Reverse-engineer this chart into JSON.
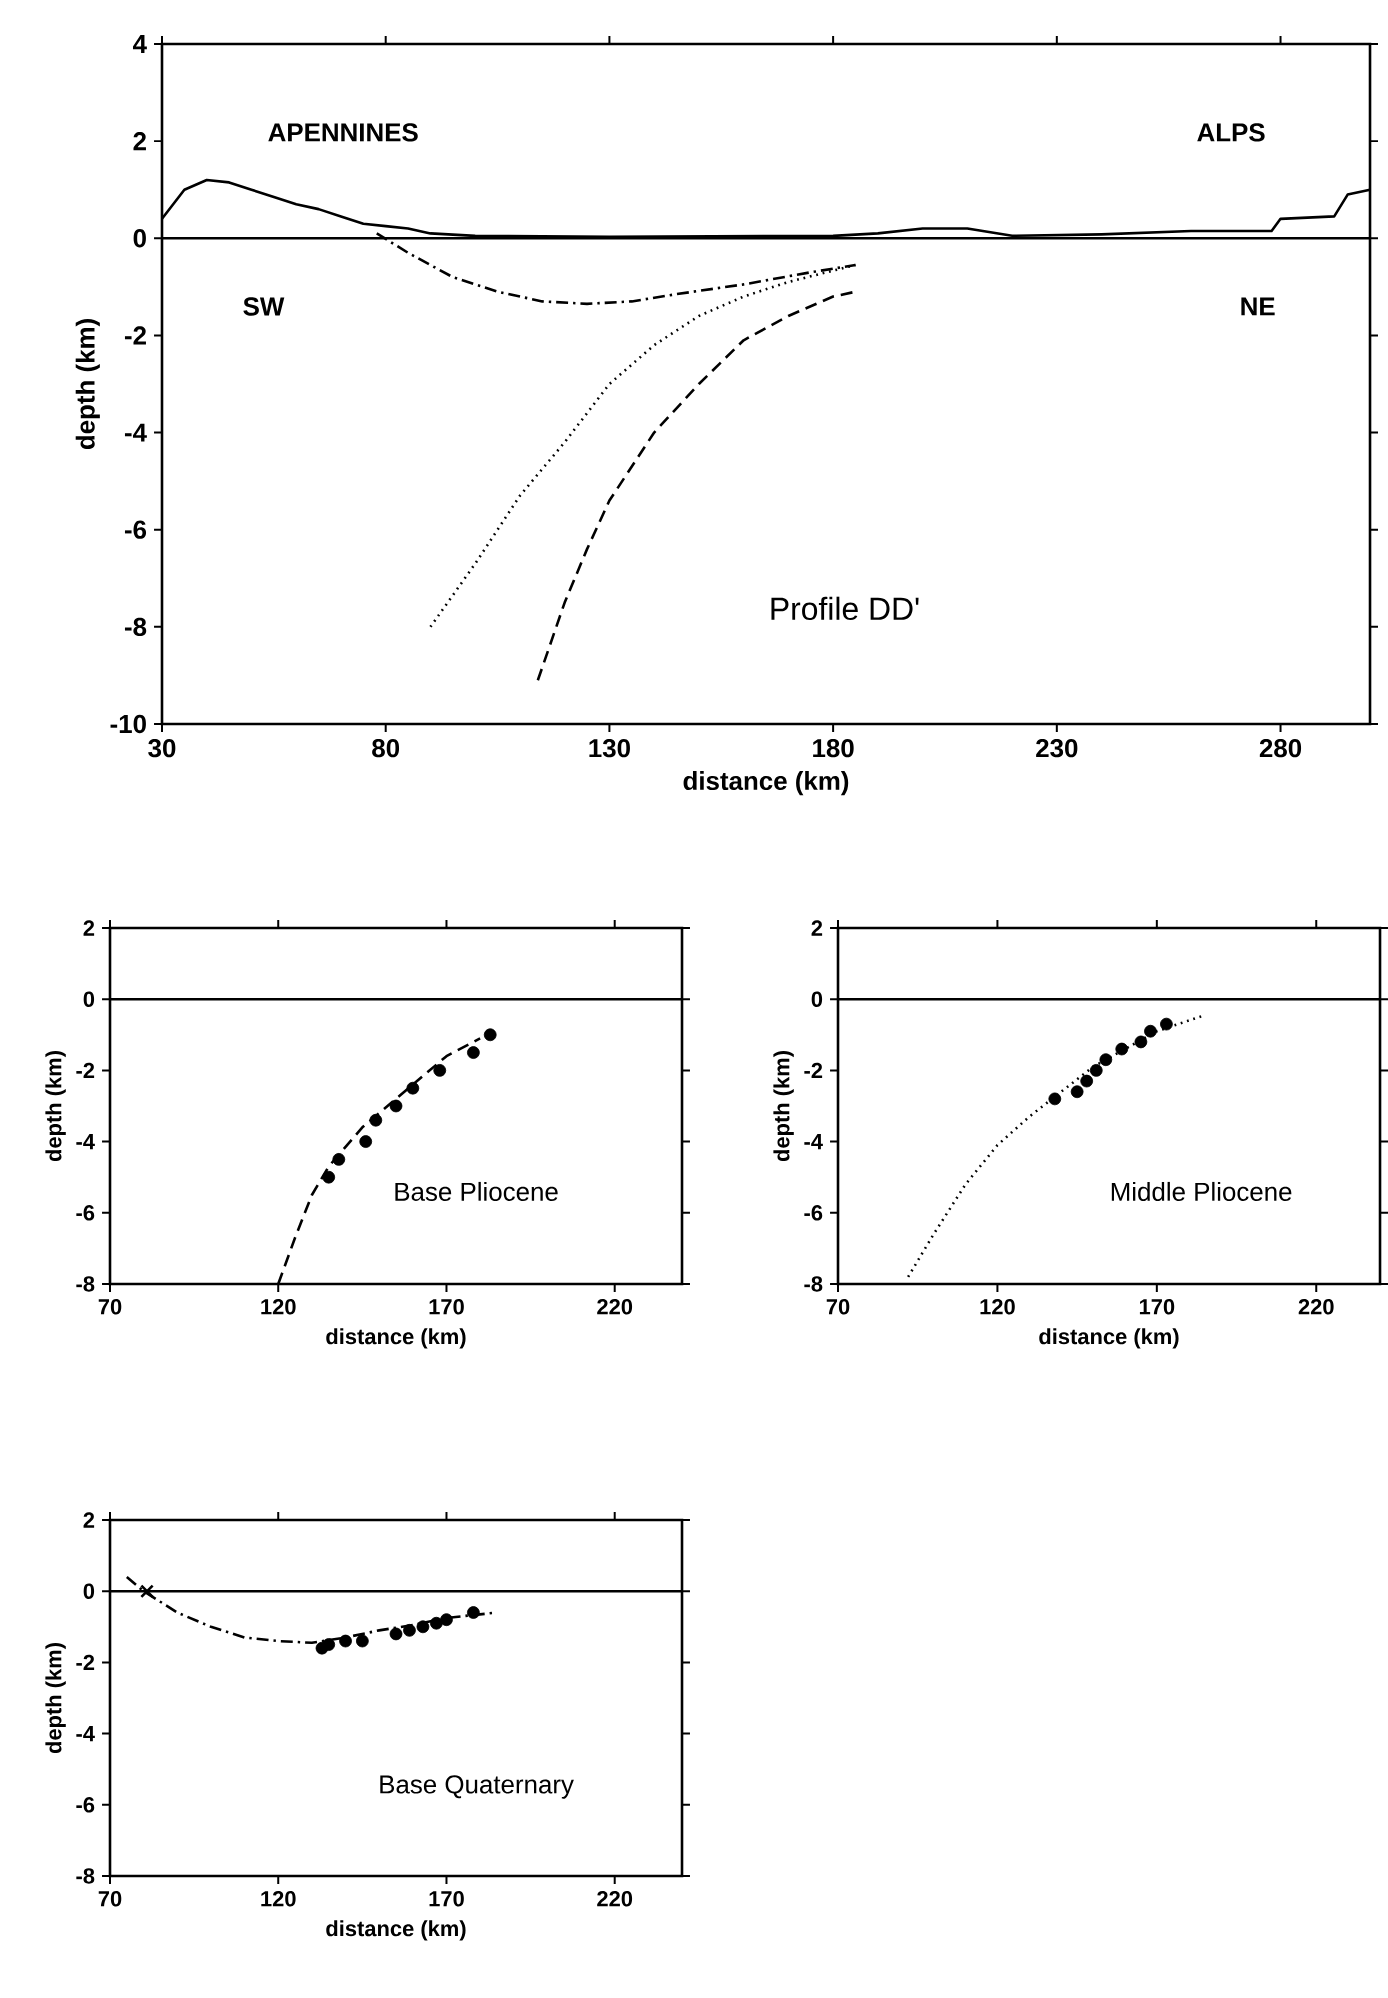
{
  "chart_data": [
    {
      "type": "line",
      "title": "Profile DD'",
      "xlabel": "distance (km)",
      "ylabel": "depth (km)",
      "xlim": [
        30,
        300
      ],
      "ylim": [
        -10,
        4
      ],
      "xticks": [
        30,
        80,
        130,
        180,
        230,
        280
      ],
      "yticks": [
        -10,
        -8,
        -6,
        -4,
        -2,
        0,
        2,
        4
      ],
      "annotations": [
        "APENNINES",
        "ALPS",
        "SW",
        "NE"
      ],
      "ref_lines": [
        {
          "axis": "y",
          "value": 0
        }
      ],
      "series": [
        {
          "color": "#000000",
          "line_style": "solid",
          "x": [
            30,
            35,
            40,
            45,
            50,
            55,
            60,
            65,
            70,
            75,
            80,
            85,
            90,
            100,
            130,
            180,
            190,
            200,
            210,
            220,
            240,
            260,
            278,
            280,
            292,
            295,
            300
          ],
          "values": [
            0.4,
            1.0,
            1.2,
            1.15,
            1.0,
            0.85,
            0.7,
            0.6,
            0.45,
            0.3,
            0.25,
            0.2,
            0.1,
            0.05,
            0.03,
            0.05,
            0.1,
            0.2,
            0.2,
            0.05,
            0.08,
            0.15,
            0.15,
            0.4,
            0.45,
            0.9,
            1.0
          ]
        },
        {
          "color": "#000000",
          "line_style": "dashdot",
          "x": [
            78,
            85,
            95,
            105,
            115,
            125,
            135,
            145,
            160,
            175,
            185
          ],
          "values": [
            0.1,
            -0.3,
            -0.8,
            -1.1,
            -1.3,
            -1.35,
            -1.3,
            -1.15,
            -0.95,
            -0.7,
            -0.55
          ]
        },
        {
          "color": "#000000",
          "line_style": "dotted",
          "x": [
            90,
            100,
            110,
            120,
            130,
            140,
            150,
            160,
            170,
            185
          ],
          "values": [
            -8,
            -6.7,
            -5.3,
            -4.2,
            -3.0,
            -2.2,
            -1.6,
            -1.2,
            -0.9,
            -0.55
          ]
        },
        {
          "color": "#000000",
          "line_style": "dashed",
          "x": [
            114,
            120,
            125,
            130,
            140,
            150,
            160,
            170,
            180,
            185
          ],
          "values": [
            -9.1,
            -7.5,
            -6.4,
            -5.4,
            -4.0,
            -3.0,
            -2.1,
            -1.6,
            -1.2,
            -1.1
          ]
        }
      ]
    },
    {
      "type": "line",
      "title": "Base Pliocene",
      "xlabel": "distance (km)",
      "ylabel": "depth (km)",
      "xlim": [
        70,
        240
      ],
      "ylim": [
        -8,
        2
      ],
      "xticks": [
        70,
        120,
        170,
        220
      ],
      "yticks": [
        -8,
        -6,
        -4,
        -2,
        0,
        2
      ],
      "ref_lines": [
        {
          "axis": "y",
          "value": 0
        }
      ],
      "series": [
        {
          "color": "#000000",
          "line_style": "dashed",
          "x": [
            120,
            125,
            130,
            135,
            145,
            160,
            170,
            180
          ],
          "values": [
            -8,
            -6.7,
            -5.5,
            -4.7,
            -3.6,
            -2.4,
            -1.6,
            -1.1
          ]
        },
        {
          "type": "scatter",
          "marker": "circle",
          "color": "#000000",
          "x": [
            135,
            138,
            146,
            149,
            155,
            160,
            168,
            178,
            183
          ],
          "values": [
            -5.0,
            -4.5,
            -4.0,
            -3.4,
            -3.0,
            -2.5,
            -2.0,
            -1.5,
            -1.0
          ]
        }
      ]
    },
    {
      "type": "line",
      "title": "Middle Pliocene",
      "xlabel": "distance (km)",
      "ylabel": "depth (km)",
      "xlim": [
        70,
        240
      ],
      "ylim": [
        -8,
        2
      ],
      "xticks": [
        70,
        120,
        170,
        220
      ],
      "yticks": [
        -8,
        -6,
        -4,
        -2,
        0,
        2
      ],
      "ref_lines": [
        {
          "axis": "y",
          "value": 0
        }
      ],
      "series": [
        {
          "color": "#000000",
          "line_style": "dotted",
          "x": [
            92,
            100,
            110,
            120,
            130,
            140,
            150,
            160,
            170,
            185
          ],
          "values": [
            -7.8,
            -6.6,
            -5.2,
            -4.1,
            -3.3,
            -2.6,
            -1.9,
            -1.4,
            -0.9,
            -0.45
          ]
        },
        {
          "type": "scatter",
          "marker": "circle",
          "color": "#000000",
          "x": [
            138,
            145,
            148,
            151,
            154,
            159,
            165,
            168,
            173
          ],
          "values": [
            -2.8,
            -2.6,
            -2.3,
            -2.0,
            -1.7,
            -1.4,
            -1.2,
            -0.9,
            -0.7
          ]
        }
      ]
    },
    {
      "type": "line",
      "title": "Base Quaternary",
      "xlabel": "distance (km)",
      "ylabel": "depth (km)",
      "xlim": [
        70,
        240
      ],
      "ylim": [
        -8,
        2
      ],
      "xticks": [
        70,
        120,
        170,
        220
      ],
      "yticks": [
        -8,
        -6,
        -4,
        -2,
        0,
        2
      ],
      "ref_lines": [
        {
          "axis": "y",
          "value": 0
        }
      ],
      "series": [
        {
          "color": "#000000",
          "line_style": "dashdot",
          "x": [
            75,
            80,
            90,
            100,
            110,
            120,
            130,
            140,
            150,
            160,
            170,
            185
          ],
          "values": [
            0.4,
            0,
            -0.6,
            -1.0,
            -1.3,
            -1.4,
            -1.45,
            -1.3,
            -1.1,
            -0.95,
            -0.75,
            -0.6
          ]
        },
        {
          "type": "scatter",
          "marker": "cross",
          "color": "#000000",
          "x": [
            81
          ],
          "values": [
            0
          ]
        },
        {
          "type": "scatter",
          "marker": "circle",
          "color": "#000000",
          "x": [
            133,
            135,
            140,
            145,
            155,
            159,
            163,
            167,
            170,
            178
          ],
          "values": [
            -1.6,
            -1.5,
            -1.4,
            -1.4,
            -1.2,
            -1.1,
            -1.0,
            -0.9,
            -0.8,
            -0.6
          ]
        }
      ]
    }
  ]
}
